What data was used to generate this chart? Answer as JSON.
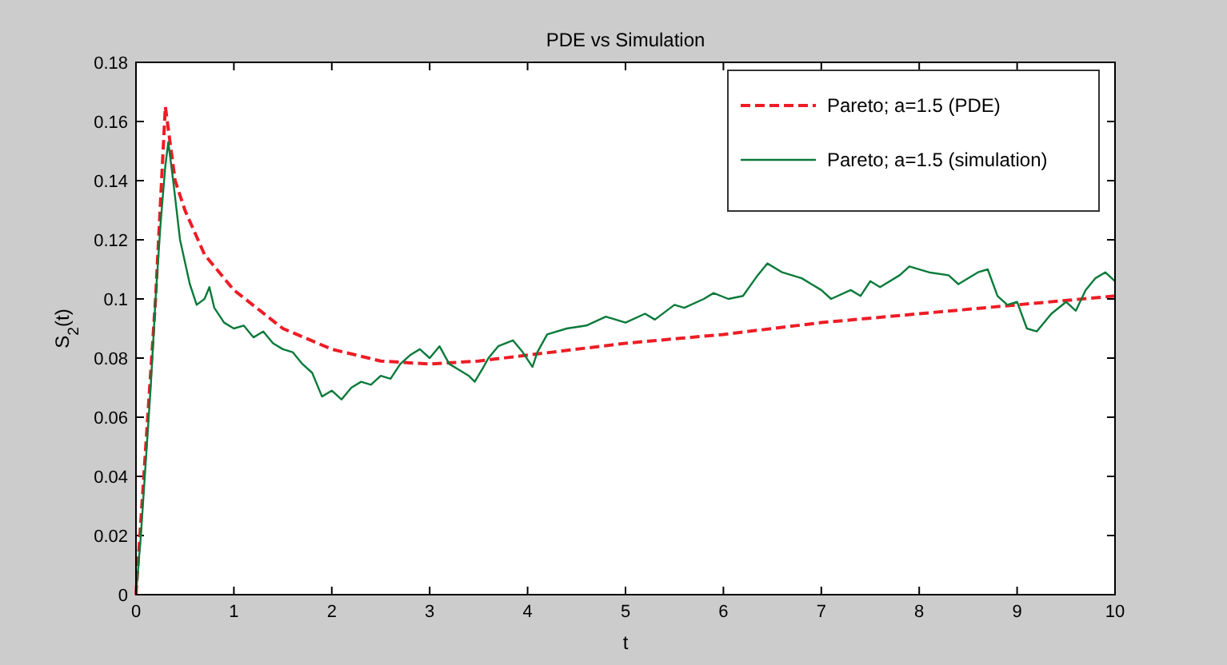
{
  "chart_data": {
    "type": "line",
    "title": "PDE vs Simulation",
    "xlabel": "t",
    "ylabel": "S$_{2}$(t)",
    "xlim": [
      0,
      10
    ],
    "xticks": [
      0,
      1,
      2,
      3,
      4,
      5,
      6,
      7,
      8,
      9,
      10
    ],
    "ylim": [
      0,
      0.18
    ],
    "yticks": [
      0,
      0.02,
      0.04,
      0.06,
      0.08,
      0.1,
      0.12,
      0.14,
      0.16,
      0.18
    ],
    "grid": false,
    "legend": "top right",
    "series": [
      {
        "name": "Pareto; a=1.5 (PDE)",
        "color": "#ee1c25",
        "line_style": "dashed",
        "x": [
          0,
          0.1,
          0.2,
          0.3,
          0.4,
          0.5,
          0.7,
          1,
          1.5,
          2,
          2.5,
          3,
          3.5,
          4,
          5,
          6,
          7,
          8,
          9,
          10
        ],
        "values": [
          0,
          0.05,
          0.1,
          0.165,
          0.14,
          0.13,
          0.115,
          0.103,
          0.09,
          0.083,
          0.079,
          0.078,
          0.079,
          0.081,
          0.085,
          0.088,
          0.092,
          0.095,
          0.098,
          0.101
        ]
      },
      {
        "name": "Pareto; a=1.5 (simulation)",
        "color": "#0a7a3a",
        "line_style": "solid",
        "x": [
          0,
          0.05,
          0.1,
          0.15,
          0.2,
          0.25,
          0.3,
          0.33,
          0.38,
          0.45,
          0.55,
          0.62,
          0.7,
          0.75,
          0.8,
          0.9,
          1.0,
          1.1,
          1.2,
          1.3,
          1.4,
          1.5,
          1.6,
          1.7,
          1.8,
          1.9,
          2.0,
          2.1,
          2.2,
          2.3,
          2.4,
          2.5,
          2.6,
          2.7,
          2.8,
          2.9,
          3.0,
          3.1,
          3.2,
          3.3,
          3.4,
          3.46,
          3.55,
          3.6,
          3.7,
          3.85,
          3.95,
          4.05,
          4.1,
          4.2,
          4.4,
          4.6,
          4.8,
          5.0,
          5.2,
          5.3,
          5.5,
          5.6,
          5.8,
          5.9,
          6.05,
          6.2,
          6.35,
          6.45,
          6.6,
          6.8,
          7.0,
          7.1,
          7.3,
          7.4,
          7.5,
          7.6,
          7.8,
          7.9,
          8.1,
          8.3,
          8.4,
          8.6,
          8.7,
          8.8,
          8.9,
          9.0,
          9.1,
          9.2,
          9.35,
          9.5,
          9.6,
          9.7,
          9.8,
          9.9,
          10
        ],
        "values": [
          0,
          0.02,
          0.045,
          0.07,
          0.1,
          0.125,
          0.145,
          0.153,
          0.14,
          0.12,
          0.105,
          0.098,
          0.1,
          0.104,
          0.097,
          0.092,
          0.09,
          0.091,
          0.087,
          0.089,
          0.085,
          0.083,
          0.082,
          0.078,
          0.075,
          0.067,
          0.069,
          0.066,
          0.07,
          0.072,
          0.071,
          0.074,
          0.073,
          0.078,
          0.081,
          0.083,
          0.08,
          0.084,
          0.078,
          0.076,
          0.074,
          0.072,
          0.077,
          0.08,
          0.084,
          0.086,
          0.082,
          0.077,
          0.082,
          0.088,
          0.09,
          0.091,
          0.094,
          0.092,
          0.095,
          0.093,
          0.098,
          0.097,
          0.1,
          0.102,
          0.1,
          0.101,
          0.108,
          0.112,
          0.109,
          0.107,
          0.103,
          0.1,
          0.103,
          0.101,
          0.106,
          0.104,
          0.108,
          0.111,
          0.109,
          0.108,
          0.105,
          0.109,
          0.11,
          0.101,
          0.098,
          0.099,
          0.09,
          0.089,
          0.095,
          0.099,
          0.096,
          0.103,
          0.107,
          0.109,
          0.106
        ]
      }
    ]
  }
}
